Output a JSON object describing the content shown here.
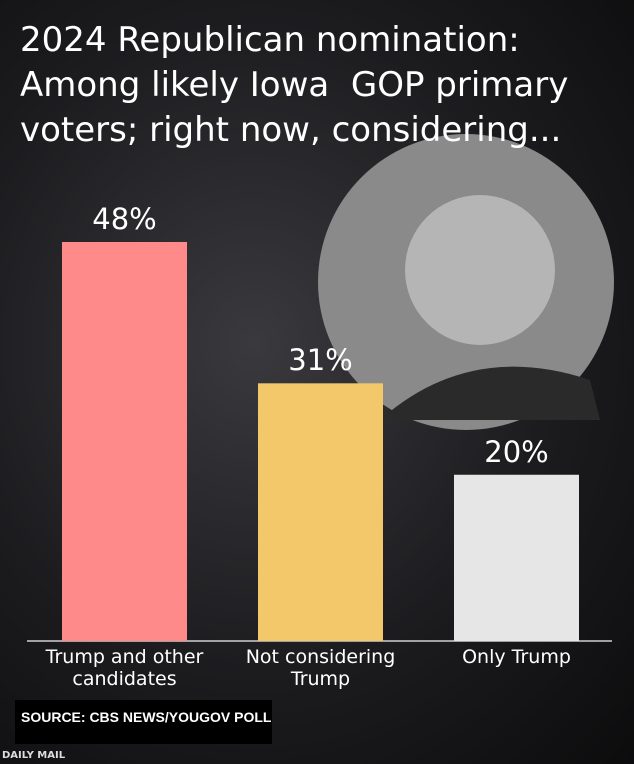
{
  "chart_data": {
    "type": "bar",
    "title": "2024 Republican nomination: Among likely Iowa  GOP primary voters; right now, considering...",
    "categories": [
      "Trump and other candidates",
      "Not considering Trump",
      "Only Trump"
    ],
    "values": [
      48,
      31,
      20
    ],
    "value_labels": [
      "48%",
      "31%",
      "20%"
    ],
    "colors": [
      "#ff8a8a",
      "#f2c86a",
      "#e6e6e6"
    ],
    "source": "SOURCE: CBS NEWS/YOUGOV POLL",
    "credit": "DAILY MAIL"
  }
}
